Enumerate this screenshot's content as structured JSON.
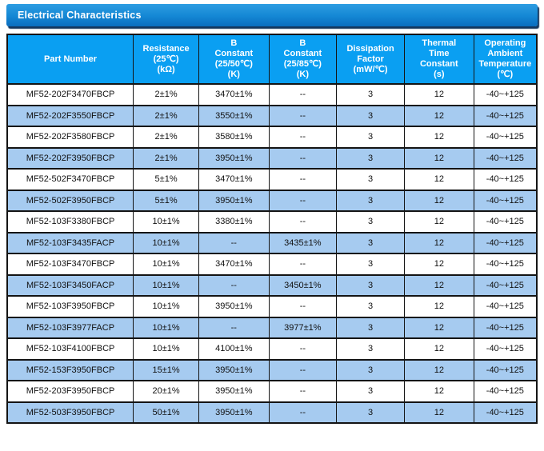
{
  "page": {
    "section_title": "Electrical Characteristics"
  },
  "colors": {
    "title_bar_gradient_top": "#2d9de2",
    "title_bar_gradient_bottom": "#0a6dbe",
    "title_bar_shadow": "#14375e",
    "header_cell_bg": "#0a9ff2",
    "header_text": "#ffffff",
    "row_alt_bg": "#a6cbf0",
    "row_bg": "#ffffff",
    "grid_border": "#141414",
    "cell_text": "#111111"
  },
  "table": {
    "columns": [
      {
        "id": "part_number",
        "label": "Part Number"
      },
      {
        "id": "resistance",
        "label": "Resistance\n(25℃)\n(kΩ)"
      },
      {
        "id": "b_constant_25_50",
        "label": "B\nConstant\n(25/50℃)\n(K)"
      },
      {
        "id": "b_constant_25_85",
        "label": "B\nConstant\n(25/85℃)\n(K)"
      },
      {
        "id": "dissipation_factor",
        "label": "Dissipation\nFactor\n(mW/℃)"
      },
      {
        "id": "thermal_time_constant",
        "label": "Thermal\nTime\nConstant\n(s)"
      },
      {
        "id": "operating_ambient_temperature",
        "label": "Operating\nAmbient\nTemperature\n(℃)"
      }
    ],
    "rows": [
      [
        "MF52-202F3470FBCP",
        "2±1%",
        "3470±1%",
        "--",
        "3",
        "12",
        "-40~+125"
      ],
      [
        "MF52-202F3550FBCP",
        "2±1%",
        "3550±1%",
        "--",
        "3",
        "12",
        "-40~+125"
      ],
      [
        "MF52-202F3580FBCP",
        "2±1%",
        "3580±1%",
        "--",
        "3",
        "12",
        "-40~+125"
      ],
      [
        "MF52-202F3950FBCP",
        "2±1%",
        "3950±1%",
        "--",
        "3",
        "12",
        "-40~+125"
      ],
      [
        "MF52-502F3470FBCP",
        "5±1%",
        "3470±1%",
        "--",
        "3",
        "12",
        "-40~+125"
      ],
      [
        "MF52-502F3950FBCP",
        "5±1%",
        "3950±1%",
        "--",
        "3",
        "12",
        "-40~+125"
      ],
      [
        "MF52-103F3380FBCP",
        "10±1%",
        "3380±1%",
        "--",
        "3",
        "12",
        "-40~+125"
      ],
      [
        "MF52-103F3435FACP",
        "10±1%",
        "--",
        "3435±1%",
        "3",
        "12",
        "-40~+125"
      ],
      [
        "MF52-103F3470FBCP",
        "10±1%",
        "3470±1%",
        "--",
        "3",
        "12",
        "-40~+125"
      ],
      [
        "MF52-103F3450FACP",
        "10±1%",
        "--",
        "3450±1%",
        "3",
        "12",
        "-40~+125"
      ],
      [
        "MF52-103F3950FBCP",
        "10±1%",
        "3950±1%",
        "--",
        "3",
        "12",
        "-40~+125"
      ],
      [
        "MF52-103F3977FACP",
        "10±1%",
        "--",
        "3977±1%",
        "3",
        "12",
        "-40~+125"
      ],
      [
        "MF52-103F4100FBCP",
        "10±1%",
        "4100±1%",
        "--",
        "3",
        "12",
        "-40~+125"
      ],
      [
        "MF52-153F3950FBCP",
        "15±1%",
        "3950±1%",
        "--",
        "3",
        "12",
        "-40~+125"
      ],
      [
        "MF52-203F3950FBCP",
        "20±1%",
        "3950±1%",
        "--",
        "3",
        "12",
        "-40~+125"
      ],
      [
        "MF52-503F3950FBCP",
        "50±1%",
        "3950±1%",
        "--",
        "3",
        "12",
        "-40~+125"
      ]
    ]
  }
}
